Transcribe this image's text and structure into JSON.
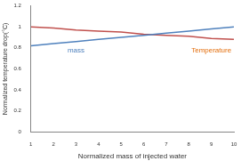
{
  "chart_data": {
    "type": "line",
    "x_label": "Normalized mass of injected water",
    "y_label": "Normalized temperature drop(°C)",
    "x": [
      1,
      2,
      3,
      4,
      5,
      6,
      7,
      8,
      9,
      10
    ],
    "series": [
      {
        "name": "mass",
        "color": "#4f81bd",
        "values": [
          0.82,
          0.84,
          0.86,
          0.88,
          0.9,
          0.92,
          0.94,
          0.96,
          0.98,
          1.0
        ]
      },
      {
        "name": "Temperature",
        "color": "#c0504d",
        "values": [
          1.0,
          0.99,
          0.97,
          0.96,
          0.95,
          0.93,
          0.92,
          0.91,
          0.89,
          0.88
        ]
      }
    ],
    "xlim": [
      1,
      10
    ],
    "xticks": [
      1,
      2,
      3,
      4,
      5,
      6,
      7,
      8,
      9,
      10
    ],
    "ylim": [
      0,
      1.2
    ],
    "yticks": [
      0,
      0.2,
      0.4,
      0.6,
      0.8,
      1,
      1.2
    ],
    "grid": false
  }
}
